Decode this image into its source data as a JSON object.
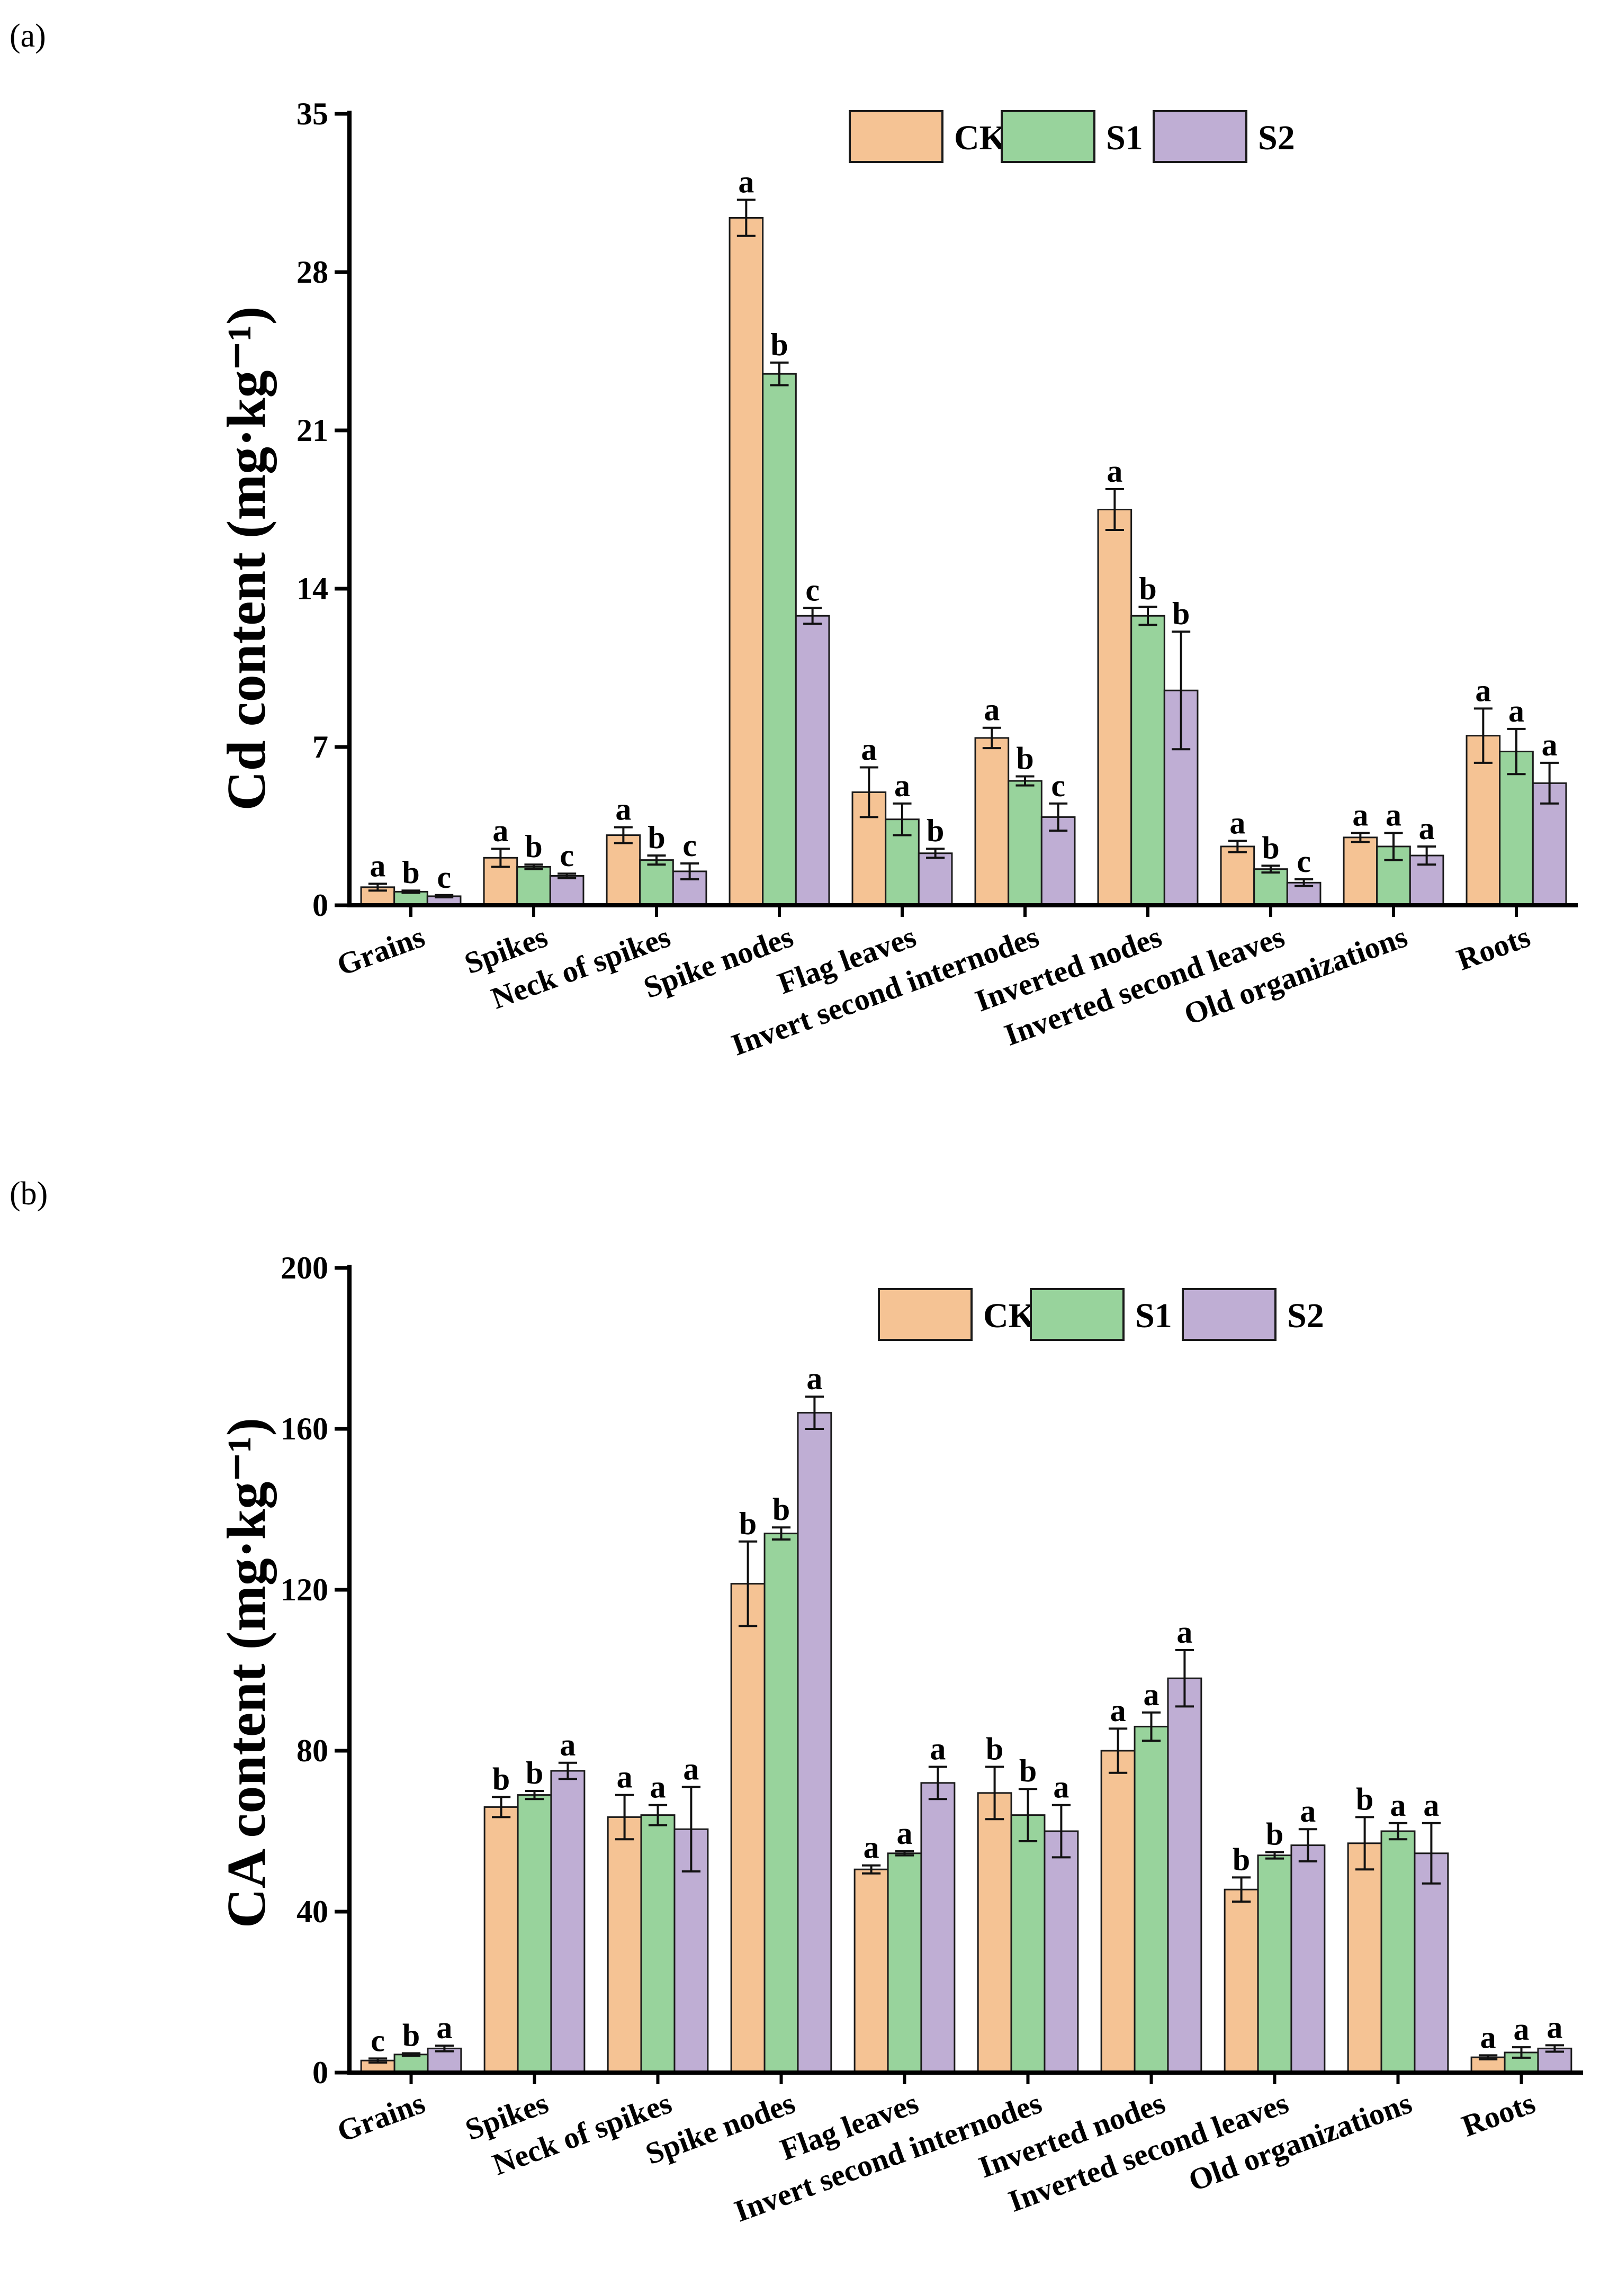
{
  "chart_data": [
    {
      "panel": "(a)",
      "type": "bar",
      "ylabel": "Cd content (mg·kg⁻¹)",
      "ylim": [
        0,
        35
      ],
      "yticks": [
        0,
        7,
        14,
        21,
        28,
        35
      ],
      "legend_position": "top-right",
      "categories": [
        "Grains",
        "Spikes",
        "Neck of spikes",
        "Spike nodes",
        "Flag leaves",
        "Invert second internodes",
        "Inverted nodes",
        "Inverted second leaves",
        "Old organizations",
        "Roots"
      ],
      "series": [
        {
          "name": "CK",
          "color": "#F5C394",
          "values": [
            0.8,
            2.1,
            3.1,
            30.4,
            5.0,
            7.4,
            17.5,
            2.6,
            3.0,
            7.5
          ],
          "errors": [
            0.15,
            0.4,
            0.35,
            0.8,
            1.1,
            0.45,
            0.9,
            0.25,
            0.2,
            1.2
          ],
          "letters": [
            "a",
            "a",
            "a",
            "a",
            "a",
            "a",
            "a",
            "a",
            "a",
            "a"
          ]
        },
        {
          "name": "S1",
          "color": "#98D39C",
          "values": [
            0.6,
            1.7,
            2.0,
            23.5,
            3.8,
            5.5,
            12.8,
            1.6,
            2.6,
            6.8
          ],
          "errors": [
            0.05,
            0.1,
            0.2,
            0.5,
            0.7,
            0.2,
            0.4,
            0.15,
            0.6,
            1.0
          ],
          "letters": [
            "b",
            "b",
            "b",
            "b",
            "a",
            "b",
            "b",
            "b",
            "a",
            "a"
          ]
        },
        {
          "name": "S2",
          "color": "#BFAED4",
          "values": [
            0.4,
            1.3,
            1.5,
            12.8,
            2.3,
            3.9,
            9.5,
            1.0,
            2.2,
            5.4
          ],
          "errors": [
            0.05,
            0.1,
            0.35,
            0.35,
            0.2,
            0.6,
            2.6,
            0.15,
            0.4,
            0.9
          ],
          "letters": [
            "c",
            "c",
            "c",
            "c",
            "b",
            "c",
            "b",
            "c",
            "a",
            "a"
          ]
        }
      ]
    },
    {
      "panel": "(b)",
      "type": "bar",
      "ylabel": "CA content (mg·kg⁻¹)",
      "ylim": [
        0,
        200
      ],
      "yticks": [
        0,
        40,
        80,
        120,
        160,
        200
      ],
      "legend_position": "top-right",
      "categories": [
        "Grains",
        "Spikes",
        "Neck of spikes",
        "Spike nodes",
        "Flag leaves",
        "Invert second internodes",
        "Inverted nodes",
        "Inverted second leaves",
        "Old organizations",
        "Roots"
      ],
      "series": [
        {
          "name": "CK",
          "color": "#F5C394",
          "values": [
            3.0,
            66.0,
            63.5,
            121.5,
            50.5,
            69.5,
            80.0,
            45.5,
            57.0,
            3.8
          ],
          "errors": [
            0.5,
            2.5,
            5.5,
            10.5,
            1.0,
            6.5,
            5.5,
            3.0,
            6.5,
            0.5
          ],
          "letters": [
            "c",
            "b",
            "a",
            "b",
            "a",
            "b",
            "a",
            "b",
            "b",
            "a"
          ]
        },
        {
          "name": "S1",
          "color": "#98D39C",
          "values": [
            4.5,
            69.0,
            64.0,
            134.0,
            54.5,
            64.0,
            86.0,
            54.0,
            60.0,
            5.0
          ],
          "errors": [
            0.3,
            1.0,
            2.5,
            1.5,
            0.5,
            6.5,
            3.5,
            0.8,
            2.0,
            1.3
          ],
          "letters": [
            "b",
            "b",
            "a",
            "b",
            "a",
            "b",
            "a",
            "b",
            "a",
            "a"
          ]
        },
        {
          "name": "S2",
          "color": "#BFAED4",
          "values": [
            6.0,
            75.0,
            60.5,
            164.0,
            72.0,
            60.0,
            98.0,
            56.5,
            54.5,
            6.0
          ],
          "errors": [
            0.7,
            2.0,
            10.5,
            4.0,
            4.0,
            6.5,
            7.0,
            4.0,
            7.5,
            0.8
          ],
          "letters": [
            "a",
            "a",
            "a",
            "a",
            "a",
            "a",
            "a",
            "a",
            "a",
            "a"
          ]
        }
      ]
    }
  ]
}
